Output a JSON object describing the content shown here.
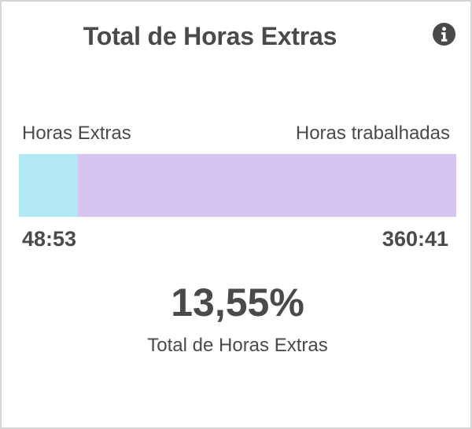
{
  "widget": {
    "title": "Total de Horas Extras",
    "info_icon": "info-circle-icon",
    "labels": {
      "left": "Horas Extras",
      "right": "Horas trabalhadas"
    },
    "values": {
      "overtime": "48:53",
      "worked": "360:41"
    },
    "overtime_fraction": 0.1355,
    "percent": "13,55%",
    "subtitle": "Total de Horas Extras",
    "colors": {
      "overtime_bar": "#b3e8f6",
      "worked_bar": "#d5c5f0",
      "text": "#4a4a4a"
    }
  }
}
